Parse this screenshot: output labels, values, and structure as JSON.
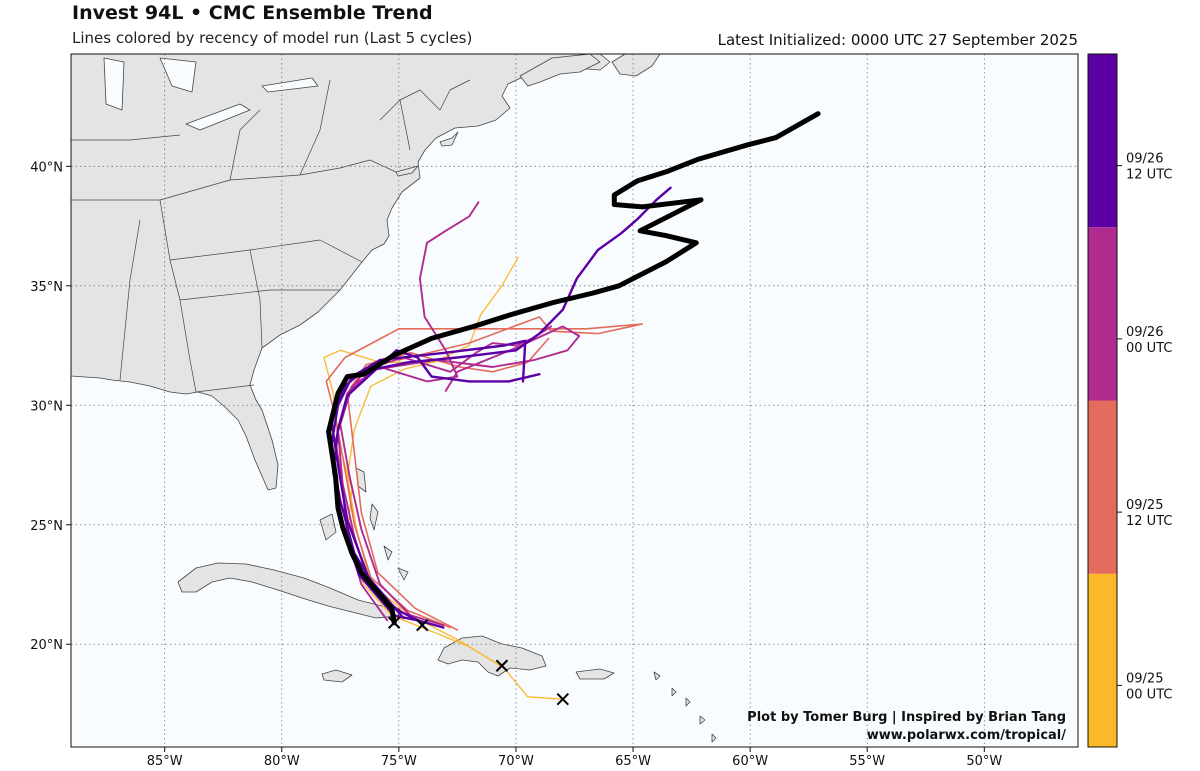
{
  "header": {
    "title": "Invest 94L • CMC Ensemble Trend",
    "subtitle": "Lines colored by recency of model run (Last 5 cycles)",
    "latest_init": "Latest Initialized: 0000 UTC 27 September 2025"
  },
  "credits": {
    "line1": "Plot by Tomer Burg | Inspired by Brian Tang",
    "line2": "www.polarwx.com/tropical/"
  },
  "axes": {
    "lon_ticks": [
      {
        "value": -85,
        "label": "85°W"
      },
      {
        "value": -80,
        "label": "80°W"
      },
      {
        "value": -75,
        "label": "75°W"
      },
      {
        "value": -70,
        "label": "70°W"
      },
      {
        "value": -65,
        "label": "65°W"
      },
      {
        "value": -60,
        "label": "60°W"
      },
      {
        "value": -55,
        "label": "55°W"
      },
      {
        "value": -50,
        "label": "50°W"
      }
    ],
    "lat_ticks": [
      {
        "value": 20,
        "label": "20°N"
      },
      {
        "value": 25,
        "label": "25°N"
      },
      {
        "value": 30,
        "label": "30°N"
      },
      {
        "value": 35,
        "label": "35°N"
      },
      {
        "value": 40,
        "label": "40°N"
      }
    ],
    "lon_range": [
      -89.0,
      -46.0
    ],
    "lat_range": [
      15.7,
      44.7
    ]
  },
  "colorbar": [
    {
      "label_line1": "09/25",
      "label_line2": "00 UTC",
      "color": "#fbb829"
    },
    {
      "label_line1": "09/25",
      "label_line2": "12 UTC",
      "color": "#e56b5d"
    },
    {
      "label_line1": "09/26",
      "label_line2": "00 UTC",
      "color": "#b02a8f"
    },
    {
      "label_line1": "09/26",
      "label_line2": "12 UTC",
      "color": "#5c00a5"
    }
  ],
  "colors": {
    "ocean": "#f8fcfe",
    "land": "#e4e4e4",
    "border": "#444444",
    "grid": "#777777",
    "latest_run": "#000000"
  },
  "tracks": [
    {
      "run": "09/25 00 UTC",
      "color": "#fbb829",
      "width": 1.3,
      "points": [
        [
          -68.0,
          17.7
        ],
        [
          -69.5,
          17.8
        ],
        [
          -70.5,
          19.0
        ],
        [
          -72.0,
          19.9
        ],
        [
          -73.5,
          20.5
        ],
        [
          -75.3,
          21.2
        ],
        [
          -76.5,
          22.5
        ],
        [
          -77.2,
          24.5
        ],
        [
          -77.0,
          26.5
        ],
        [
          -77.6,
          28.5
        ],
        [
          -77.8,
          30.5
        ],
        [
          -78.2,
          32.0
        ],
        [
          -77.5,
          32.3
        ],
        [
          -75.8,
          31.8
        ],
        [
          -73.5,
          31.8
        ],
        [
          -72.0,
          32.5
        ],
        [
          -71.5,
          33.8
        ],
        [
          -70.6,
          35.0
        ],
        [
          -69.9,
          36.2
        ]
      ]
    },
    {
      "run": "09/25 00 UTC",
      "color": "#fbb829",
      "width": 1.3,
      "points": [
        [
          -70.5,
          19.0
        ],
        [
          -72.5,
          20.2
        ],
        [
          -74.5,
          21.2
        ],
        [
          -76.2,
          22.5
        ],
        [
          -76.8,
          24.8
        ],
        [
          -77.2,
          27.0
        ],
        [
          -76.9,
          29.0
        ],
        [
          -76.2,
          30.8
        ],
        [
          -74.8,
          31.5
        ],
        [
          -73.2,
          31.9
        ]
      ]
    },
    {
      "run": "09/25 12 UTC",
      "color": "#e56b5d",
      "width": 1.6,
      "points": [
        [
          -72.8,
          20.7
        ],
        [
          -74.6,
          21.4
        ],
        [
          -76.2,
          22.8
        ],
        [
          -76.9,
          25.0
        ],
        [
          -77.3,
          27.3
        ],
        [
          -77.7,
          29.5
        ],
        [
          -78.1,
          31.0
        ],
        [
          -77.3,
          32.0
        ],
        [
          -75.0,
          33.2
        ],
        [
          -71.0,
          33.2
        ],
        [
          -67.0,
          33.2
        ],
        [
          -64.6,
          33.4
        ],
        [
          -66.5,
          33.0
        ],
        [
          -68.5,
          33.1
        ],
        [
          -69.0,
          33.7
        ],
        [
          -72.0,
          32.6
        ],
        [
          -75.0,
          31.9
        ]
      ]
    },
    {
      "run": "09/25 12 UTC",
      "color": "#e56b5d",
      "width": 1.6,
      "points": [
        [
          -72.5,
          20.6
        ],
        [
          -74.3,
          21.5
        ],
        [
          -75.9,
          23.0
        ],
        [
          -76.6,
          25.5
        ],
        [
          -76.9,
          28.0
        ],
        [
          -77.2,
          30.5
        ],
        [
          -76.4,
          31.7
        ],
        [
          -74.5,
          32.2
        ],
        [
          -72.4,
          31.6
        ],
        [
          -71.0,
          31.4
        ],
        [
          -69.5,
          31.8
        ],
        [
          -68.6,
          32.8
        ]
      ]
    },
    {
      "run": "09/26 00 UTC",
      "color": "#b02a8f",
      "width": 1.9,
      "points": [
        [
          -73.1,
          20.8
        ],
        [
          -74.8,
          21.3
        ],
        [
          -76.2,
          22.3
        ],
        [
          -76.9,
          24.5
        ],
        [
          -77.4,
          26.7
        ],
        [
          -77.6,
          28.9
        ],
        [
          -77.1,
          30.6
        ],
        [
          -76.4,
          31.5
        ],
        [
          -74.8,
          32.0
        ],
        [
          -72.8,
          31.4
        ],
        [
          -71.7,
          32.2
        ],
        [
          -71.0,
          32.6
        ],
        [
          -70.0,
          32.5
        ],
        [
          -69.3,
          32.8
        ],
        [
          -68.5,
          33.3
        ]
      ]
    },
    {
      "run": "09/26 00 UTC",
      "color": "#b02a8f",
      "width": 1.9,
      "points": [
        [
          -74.5,
          21.2
        ],
        [
          -75.8,
          22.5
        ],
        [
          -76.6,
          24.8
        ],
        [
          -77.1,
          27.0
        ],
        [
          -77.5,
          29.2
        ],
        [
          -77.0,
          30.8
        ],
        [
          -75.8,
          31.6
        ],
        [
          -73.8,
          31.0
        ],
        [
          -72.5,
          31.2
        ],
        [
          -73.0,
          32.3
        ],
        [
          -73.9,
          33.7
        ],
        [
          -74.1,
          35.3
        ],
        [
          -73.8,
          36.8
        ],
        [
          -73.0,
          37.3
        ],
        [
          -72.0,
          37.9
        ],
        [
          -71.6,
          38.5
        ]
      ]
    },
    {
      "run": "09/26 00 UTC",
      "color": "#b02a8f",
      "width": 1.9,
      "points": [
        [
          -75.5,
          21.0
        ],
        [
          -76.6,
          22.5
        ],
        [
          -77.2,
          24.5
        ],
        [
          -77.4,
          26.5
        ],
        [
          -77.7,
          28.5
        ],
        [
          -77.2,
          30.5
        ],
        [
          -76.0,
          31.5
        ],
        [
          -73.4,
          31.9
        ],
        [
          -71.0,
          31.6
        ],
        [
          -69.2,
          31.9
        ],
        [
          -67.8,
          32.3
        ],
        [
          -67.3,
          32.9
        ],
        [
          -68.0,
          33.3
        ],
        [
          -70.0,
          32.4
        ],
        [
          -72.5,
          31.4
        ],
        [
          -73.0,
          30.6
        ]
      ]
    },
    {
      "run": "09/26 12 UTC",
      "color": "#5c00a5",
      "width": 2.4,
      "points": [
        [
          -73.1,
          20.7
        ],
        [
          -74.2,
          21.0
        ],
        [
          -75.2,
          21.2
        ],
        [
          -76.7,
          22.9
        ],
        [
          -77.4,
          25.0
        ],
        [
          -77.8,
          27.2
        ],
        [
          -77.6,
          29.0
        ],
        [
          -77.2,
          30.4
        ],
        [
          -76.2,
          31.3
        ],
        [
          -75.1,
          32.3
        ],
        [
          -74.2,
          32.0
        ],
        [
          -73.6,
          31.2
        ],
        [
          -72.0,
          31.0
        ],
        [
          -70.3,
          31.0
        ],
        [
          -69.0,
          31.3
        ]
      ]
    },
    {
      "run": "09/26 12 UTC",
      "color": "#5c00a5",
      "width": 2.4,
      "points": [
        [
          -74.0,
          20.9
        ],
        [
          -75.6,
          21.7
        ],
        [
          -76.9,
          23.8
        ],
        [
          -77.5,
          26.0
        ],
        [
          -77.9,
          28.2
        ],
        [
          -77.6,
          30.0
        ],
        [
          -77.0,
          31.2
        ],
        [
          -75.8,
          31.9
        ],
        [
          -73.0,
          32.2
        ],
        [
          -70.5,
          32.5
        ],
        [
          -69.6,
          32.7
        ],
        [
          -69.7,
          31.0
        ]
      ]
    },
    {
      "run": "09/26 12 UTC",
      "color": "#5c00a5",
      "width": 2.4,
      "points": [
        [
          -74.8,
          21.1
        ],
        [
          -76.3,
          22.8
        ],
        [
          -77.2,
          25.2
        ],
        [
          -77.6,
          27.5
        ],
        [
          -77.9,
          29.5
        ],
        [
          -77.3,
          30.8
        ],
        [
          -76.6,
          31.4
        ],
        [
          -74.6,
          31.8
        ],
        [
          -72.5,
          32.0
        ],
        [
          -70.0,
          32.3
        ],
        [
          -69.0,
          33.0
        ],
        [
          -68.0,
          34.0
        ],
        [
          -67.4,
          35.3
        ],
        [
          -66.5,
          36.5
        ],
        [
          -65.5,
          37.2
        ],
        [
          -64.8,
          37.8
        ],
        [
          -64.0,
          38.6
        ],
        [
          -63.4,
          39.1
        ]
      ]
    },
    {
      "run": "00 UTC 27 September 2025",
      "color": "#000000",
      "width": 5.0,
      "points": [
        [
          -75.2,
          20.9
        ],
        [
          -75.3,
          21.5
        ],
        [
          -76.0,
          22.3
        ],
        [
          -76.6,
          23.0
        ],
        [
          -77.0,
          23.8
        ],
        [
          -77.4,
          24.9
        ],
        [
          -77.6,
          25.7
        ],
        [
          -77.7,
          27.0
        ],
        [
          -78.0,
          28.9
        ],
        [
          -77.6,
          30.5
        ],
        [
          -77.2,
          31.2
        ],
        [
          -76.5,
          31.3
        ],
        [
          -75.2,
          32.1
        ],
        [
          -73.6,
          32.8
        ],
        [
          -71.8,
          33.3
        ],
        [
          -70.2,
          33.8
        ],
        [
          -68.4,
          34.3
        ],
        [
          -66.7,
          34.7
        ],
        [
          -65.6,
          35.0
        ],
        [
          -64.6,
          35.5
        ],
        [
          -63.6,
          36.0
        ],
        [
          -62.3,
          36.8
        ],
        [
          -63.6,
          37.1
        ],
        [
          -64.7,
          37.3
        ],
        [
          -62.1,
          38.6
        ],
        [
          -64.6,
          38.3
        ],
        [
          -65.8,
          38.4
        ],
        [
          -65.8,
          38.8
        ],
        [
          -64.8,
          39.4
        ],
        [
          -63.5,
          39.8
        ],
        [
          -62.2,
          40.3
        ],
        [
          -60.1,
          40.9
        ],
        [
          -58.9,
          41.2
        ],
        [
          -57.1,
          42.2
        ]
      ]
    }
  ],
  "start_markers": [
    [
      -75.2,
      20.9
    ],
    [
      -74.0,
      20.8
    ],
    [
      -70.6,
      19.1
    ],
    [
      -68.0,
      17.7
    ]
  ]
}
